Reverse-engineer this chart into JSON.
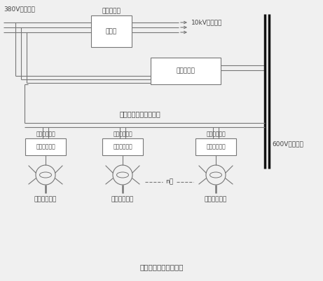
{
  "bg_color": "#f0f0f0",
  "line_color": "#777777",
  "text_color": "#444444",
  "black_color": "#111111",
  "white_color": "#ffffff",
  "label_380v": "380V输电线路",
  "label_user_xfmr": "用户变压器",
  "label_xfmr": "变压器",
  "label_10kv": "10kV输电线路",
  "label_inverter": "并网逆变器",
  "label_dc_group": "小型直流风力发电机群",
  "label_3phase_1": "三相整流管桥",
  "label_3phase_2": "三相整流管桥",
  "label_3phase_3": "三相整流管桥",
  "label_wind_1": "风力发电机组",
  "label_wind_2": "风力发电机组",
  "label_wind_3": "风力发电机组",
  "label_600v": "600V直流母线",
  "label_n": "n台",
  "title": "风力发电节能减排系统",
  "font_size": 6.5,
  "small_font_size": 5.5,
  "title_font_size": 7.5
}
